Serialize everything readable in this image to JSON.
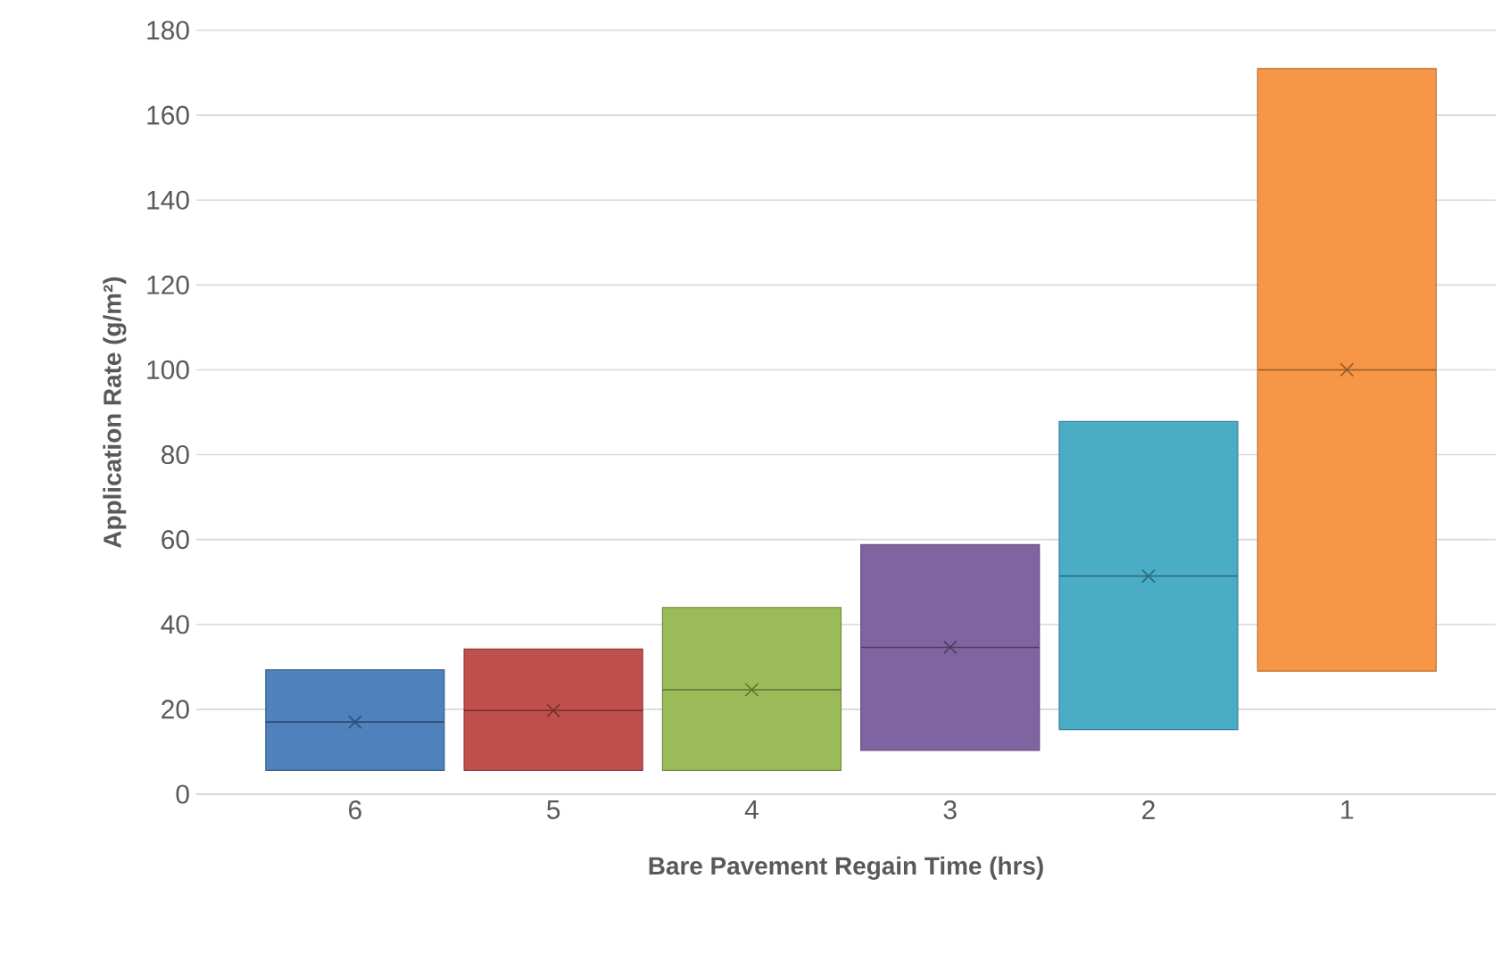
{
  "chart_data": {
    "type": "box",
    "xlabel": "Bare Pavement Regain Time (hrs)",
    "ylabel": "Application Rate (g/m²)",
    "categories": [
      "6",
      "5",
      "4",
      "3",
      "2",
      "1"
    ],
    "colors": [
      "#4f81bd",
      "#c0504d",
      "#9bbb59",
      "#8064a2",
      "#4bacc6",
      "#f79646"
    ],
    "boxes": [
      {
        "low": 5.6,
        "q1": 5.6,
        "median": 17,
        "q3": 29.3,
        "high": 29.3,
        "mean": 17
      },
      {
        "low": 5.6,
        "q1": 5.6,
        "median": 19.7,
        "q3": 34.2,
        "high": 34.2,
        "mean": 19.7
      },
      {
        "low": 5.6,
        "q1": 5.6,
        "median": 24.6,
        "q3": 44,
        "high": 44,
        "mean": 24.6
      },
      {
        "low": 10.3,
        "q1": 10.3,
        "median": 34.6,
        "q3": 58.8,
        "high": 58.8,
        "mean": 34.6
      },
      {
        "low": 15.2,
        "q1": 15.2,
        "median": 51.4,
        "q3": 87.8,
        "high": 87.8,
        "mean": 51.4
      },
      {
        "low": 29,
        "q1": 29,
        "median": 100,
        "q3": 171,
        "high": 171,
        "mean": 100
      }
    ],
    "ylim": [
      0,
      180
    ],
    "yticks": [
      0,
      20,
      40,
      60,
      80,
      100,
      120,
      140,
      160,
      180
    ],
    "grid": "y",
    "marker": "cross"
  }
}
